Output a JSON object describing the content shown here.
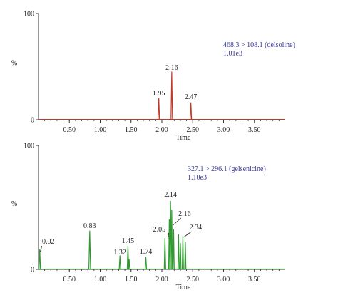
{
  "chart_data": [
    {
      "type": "line",
      "name_id": "top",
      "color": "#c0392b",
      "xlabel": "Time",
      "ylabel": "%",
      "xlim": [
        0,
        4.0
      ],
      "ylim": [
        0,
        100
      ],
      "y_ticks": [
        "0",
        "100"
      ],
      "x_ticks": [
        0.5,
        1.0,
        1.5,
        2.0,
        2.5,
        3.0,
        3.5
      ],
      "x_tick_labels": [
        "0.50",
        "1.00",
        "1.50",
        "2.00",
        "2.50",
        "3.00",
        "3.50"
      ],
      "annotation": [
        "468.3 > 108.1 (delsoline)",
        "1.01e3"
      ],
      "annotation_color": "#3a3a9a",
      "peaks": [
        {
          "x": 1.95,
          "y": 20,
          "w": 0.012
        },
        {
          "x": 2.16,
          "y": 45,
          "w": 0.012
        },
        {
          "x": 2.47,
          "y": 16,
          "w": 0.012
        }
      ],
      "peak_labels": [
        {
          "x": 1.95,
          "text": "1.95"
        },
        {
          "x": 2.16,
          "text": "2.16"
        },
        {
          "x": 2.47,
          "text": "2.47"
        }
      ]
    },
    {
      "type": "line",
      "name_id": "bottom",
      "color": "#2e9b2e",
      "xlabel": "Time",
      "ylabel": "%",
      "xlim": [
        0,
        4.0
      ],
      "ylim": [
        0,
        100
      ],
      "y_ticks": [
        "0",
        "100"
      ],
      "x_ticks": [
        0.5,
        1.0,
        1.5,
        2.0,
        2.5,
        3.0,
        3.5
      ],
      "x_tick_labels": [
        "0.50",
        "1.00",
        "1.50",
        "2.00",
        "2.50",
        "3.00",
        "3.50"
      ],
      "annotation": [
        "327.1 > 296.1 (gelsenicine)",
        "1.10e3"
      ],
      "annotation_color": "#3a3a9a",
      "peaks": [
        {
          "x": 0.02,
          "y": 16,
          "w": 0.012
        },
        {
          "x": 0.83,
          "y": 31,
          "w": 0.014
        },
        {
          "x": 1.32,
          "y": 11,
          "w": 0.012
        },
        {
          "x": 1.45,
          "y": 19,
          "w": 0.012
        },
        {
          "x": 1.47,
          "y": 8,
          "w": 0.01
        },
        {
          "x": 1.74,
          "y": 10,
          "w": 0.012
        },
        {
          "x": 2.05,
          "y": 25,
          "w": 0.012
        },
        {
          "x": 2.12,
          "y": 40,
          "w": 0.01
        },
        {
          "x": 2.14,
          "y": 55,
          "w": 0.012
        },
        {
          "x": 2.16,
          "y": 48,
          "w": 0.01
        },
        {
          "x": 2.19,
          "y": 32,
          "w": 0.01
        },
        {
          "x": 2.27,
          "y": 28,
          "w": 0.01
        },
        {
          "x": 2.3,
          "y": 21,
          "w": 0.01
        },
        {
          "x": 2.34,
          "y": 27,
          "w": 0.01
        },
        {
          "x": 2.38,
          "y": 22,
          "w": 0.01
        }
      ],
      "peak_labels": [
        {
          "x": 0.02,
          "text": "0.02"
        },
        {
          "x": 0.83,
          "text": "0.83"
        },
        {
          "x": 1.32,
          "text": "1.32"
        },
        {
          "x": 1.45,
          "text": "1.45"
        },
        {
          "x": 1.74,
          "text": "1.74"
        },
        {
          "x": 2.05,
          "text": "2.05"
        },
        {
          "x": 2.14,
          "text": "2.14"
        },
        {
          "x": 2.16,
          "text": "2.16"
        },
        {
          "x": 2.34,
          "text": "2.34"
        }
      ]
    }
  ]
}
